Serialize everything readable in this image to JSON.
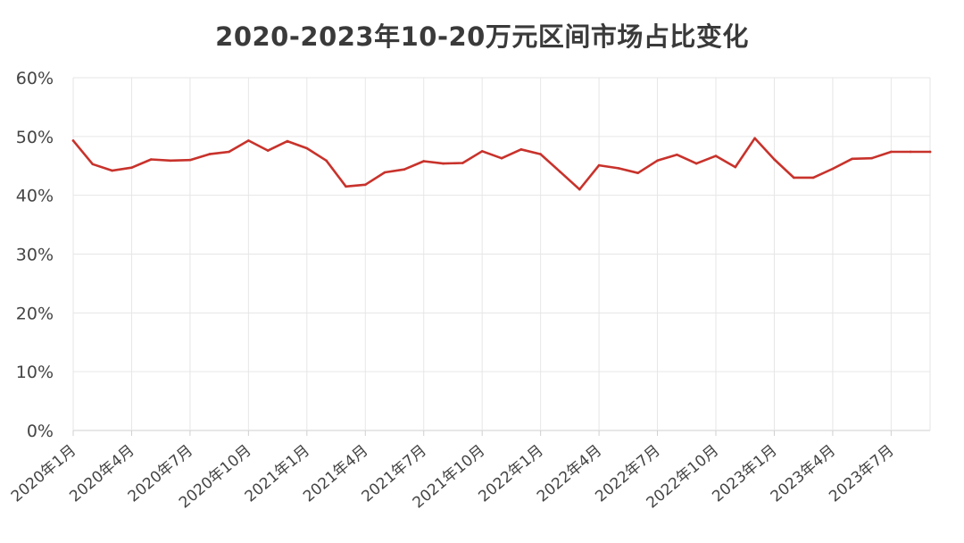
{
  "chart_data": {
    "type": "line",
    "title": "2020-2023年10-20万元区间市场占比变化",
    "xlabel": "",
    "ylabel": "",
    "ylim": [
      0,
      60
    ],
    "yticks": [
      "0%",
      "10%",
      "20%",
      "30%",
      "40%",
      "50%",
      "60%"
    ],
    "grid": true,
    "color": "#c8322b",
    "x": [
      "2020年1月",
      "2020年2月",
      "2020年3月",
      "2020年4月",
      "2020年5月",
      "2020年6月",
      "2020年7月",
      "2020年8月",
      "2020年9月",
      "2020年10月",
      "2020年11月",
      "2020年12月",
      "2021年1月",
      "2021年2月",
      "2021年3月",
      "2021年4月",
      "2021年5月",
      "2021年6月",
      "2021年7月",
      "2021年8月",
      "2021年9月",
      "2021年10月",
      "2021年11月",
      "2021年12月",
      "2022年1月",
      "2022年2月",
      "2022年3月",
      "2022年4月",
      "2022年5月",
      "2022年6月",
      "2022年7月",
      "2022年8月",
      "2022年9月",
      "2022年10月",
      "2022年11月",
      "2022年12月",
      "2023年1月",
      "2023年2月",
      "2023年3月",
      "2023年4月",
      "2023年5月",
      "2023年6月",
      "2023年7月",
      "2023年8月",
      "2023年9月"
    ],
    "xticklabels": [
      "2020年1月",
      "2020年4月",
      "2020年7月",
      "2020年10月",
      "2021年1月",
      "2021年4月",
      "2021年7月",
      "2021年10月",
      "2022年1月",
      "2022年4月",
      "2022年7月",
      "2022年10月",
      "2023年1月",
      "2023年4月",
      "2023年7月"
    ],
    "series": [
      {
        "values": [
          49.3,
          45.3,
          44.2,
          44.7,
          46.1,
          45.9,
          46.0,
          47.0,
          47.4,
          49.3,
          47.6,
          49.2,
          48.0,
          45.9,
          41.5,
          41.8,
          43.9,
          44.4,
          45.8,
          45.4,
          45.5,
          47.5,
          46.3,
          47.8,
          47.0,
          44.0,
          41.0,
          45.1,
          44.6,
          43.8,
          45.9,
          46.9,
          45.4,
          46.7,
          44.8,
          49.7,
          46.1,
          43.0,
          43.0,
          44.5,
          46.2,
          46.3,
          47.4,
          47.4,
          47.4
        ]
      }
    ]
  }
}
